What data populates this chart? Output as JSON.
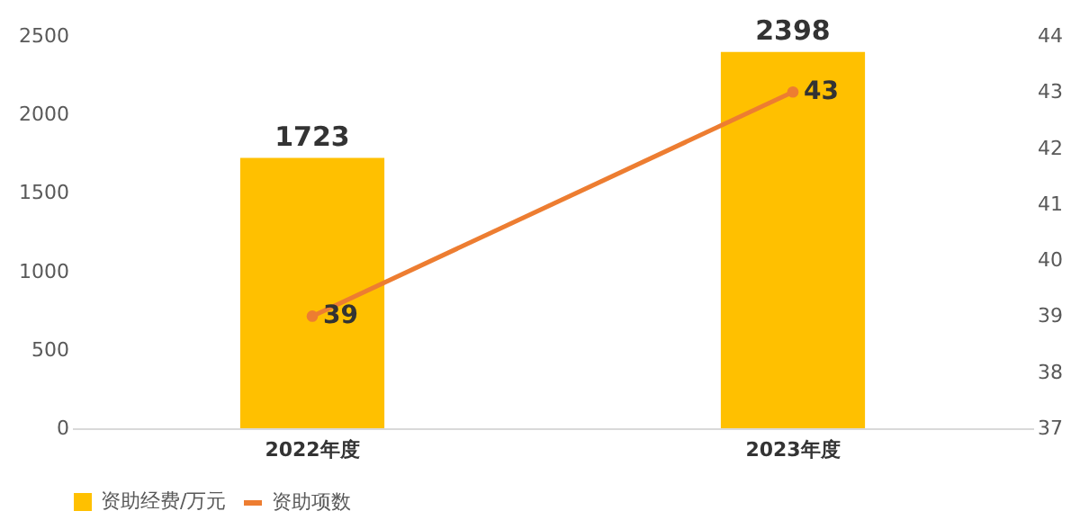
{
  "chart_data": {
    "type": "bar",
    "categories": [
      "2022年度",
      "2023年度"
    ],
    "series": [
      {
        "name": "资助经费/万元",
        "color": "#ffc000",
        "values": [
          1723,
          2398
        ]
      },
      {
        "name": "资助项数",
        "type": "line",
        "axis": "y2",
        "color": "#ed7d31",
        "values": [
          39,
          43
        ]
      }
    ],
    "ylim": [
      0,
      2500
    ],
    "yticks": [
      0,
      500,
      1000,
      1500,
      2000,
      2500
    ],
    "y2lim": [
      37,
      44
    ],
    "y2ticks": [
      37,
      38,
      39,
      40,
      41,
      42,
      43,
      44
    ],
    "data_labels": true,
    "legend": "bottom",
    "marker": "circle",
    "line_style": "solid"
  }
}
